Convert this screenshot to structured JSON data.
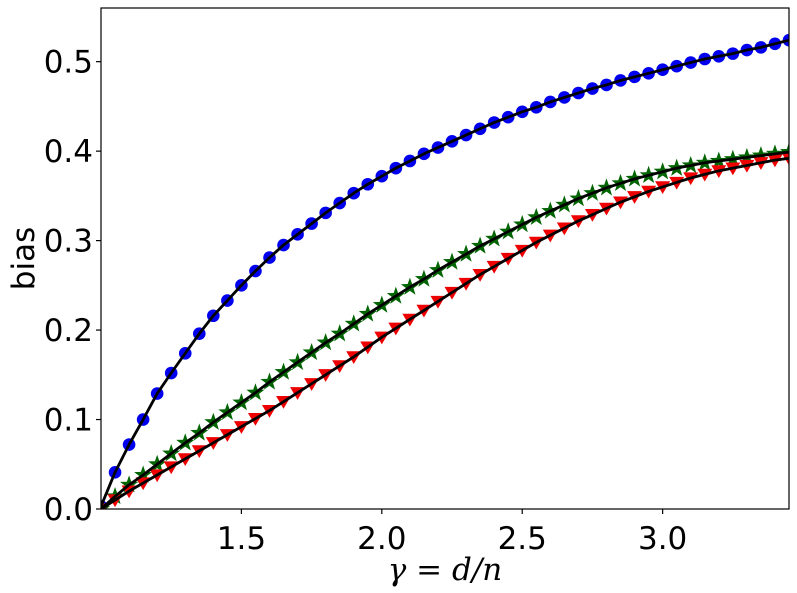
{
  "chart_data": {
    "type": "line",
    "title": "",
    "xlabel": "γ = d/n",
    "ylabel": "bias",
    "xlim": [
      1.0,
      3.45
    ],
    "ylim": [
      0.0,
      0.56
    ],
    "xticks": [
      1.5,
      2.0,
      2.5,
      3.0
    ],
    "xtick_labels": [
      "1.5",
      "2.0",
      "2.5",
      "3.0"
    ],
    "yticks": [
      0.0,
      0.1,
      0.2,
      0.3,
      0.4,
      0.5
    ],
    "ytick_labels": [
      "0.0",
      "0.1",
      "0.2",
      "0.3",
      "0.4",
      "0.5"
    ],
    "grid": false,
    "legend": "none",
    "curve_color": "#000000",
    "series": [
      {
        "marker": "circle",
        "color": "#0000ee",
        "x": [
          1.0,
          1.05,
          1.1,
          1.15,
          1.2,
          1.25,
          1.3,
          1.35,
          1.4,
          1.45,
          1.5,
          1.55,
          1.6,
          1.65,
          1.7,
          1.75,
          1.8,
          1.85,
          1.9,
          1.95,
          2.0,
          2.05,
          2.1,
          2.15,
          2.2,
          2.25,
          2.3,
          2.35,
          2.4,
          2.45,
          2.5,
          2.55,
          2.6,
          2.65,
          2.7,
          2.75,
          2.8,
          2.85,
          2.9,
          2.95,
          3.0,
          3.05,
          3.1,
          3.15,
          3.2,
          3.25,
          3.3,
          3.35,
          3.4,
          3.45
        ],
        "y": [
          0.003,
          0.041,
          0.072,
          0.1,
          0.129,
          0.152,
          0.174,
          0.196,
          0.216,
          0.233,
          0.25,
          0.266,
          0.281,
          0.295,
          0.307,
          0.319,
          0.331,
          0.342,
          0.353,
          0.363,
          0.372,
          0.381,
          0.389,
          0.397,
          0.404,
          0.411,
          0.418,
          0.425,
          0.432,
          0.438,
          0.444,
          0.449,
          0.455,
          0.46,
          0.465,
          0.47,
          0.474,
          0.479,
          0.483,
          0.487,
          0.491,
          0.495,
          0.499,
          0.503,
          0.506,
          0.509,
          0.513,
          0.516,
          0.52,
          0.524
        ]
      },
      {
        "marker": "star",
        "color": "#006400",
        "x": [
          1.0,
          1.05,
          1.1,
          1.15,
          1.2,
          1.25,
          1.3,
          1.35,
          1.4,
          1.45,
          1.5,
          1.55,
          1.6,
          1.65,
          1.7,
          1.75,
          1.8,
          1.85,
          1.9,
          1.95,
          2.0,
          2.05,
          2.1,
          2.15,
          2.2,
          2.25,
          2.3,
          2.35,
          2.4,
          2.45,
          2.5,
          2.55,
          2.6,
          2.65,
          2.7,
          2.75,
          2.8,
          2.85,
          2.9,
          2.95,
          3.0,
          3.05,
          3.1,
          3.15,
          3.2,
          3.25,
          3.3,
          3.35,
          3.4,
          3.45
        ],
        "y": [
          0.0,
          0.014,
          0.027,
          0.038,
          0.05,
          0.062,
          0.074,
          0.085,
          0.097,
          0.108,
          0.119,
          0.13,
          0.142,
          0.153,
          0.164,
          0.175,
          0.186,
          0.196,
          0.207,
          0.218,
          0.228,
          0.238,
          0.248,
          0.257,
          0.267,
          0.276,
          0.285,
          0.294,
          0.302,
          0.31,
          0.318,
          0.326,
          0.333,
          0.34,
          0.347,
          0.353,
          0.359,
          0.364,
          0.369,
          0.373,
          0.377,
          0.381,
          0.384,
          0.387,
          0.389,
          0.391,
          0.393,
          0.395,
          0.397,
          0.399
        ]
      },
      {
        "marker": "triangle-down",
        "color": "#ee0000",
        "x": [
          1.0,
          1.05,
          1.1,
          1.15,
          1.2,
          1.25,
          1.3,
          1.35,
          1.4,
          1.45,
          1.5,
          1.55,
          1.6,
          1.65,
          1.7,
          1.75,
          1.8,
          1.85,
          1.9,
          1.95,
          2.0,
          2.05,
          2.1,
          2.15,
          2.2,
          2.25,
          2.3,
          2.35,
          2.4,
          2.45,
          2.5,
          2.55,
          2.6,
          2.65,
          2.7,
          2.75,
          2.8,
          2.85,
          2.9,
          2.95,
          3.0,
          3.05,
          3.1,
          3.15,
          3.2,
          3.25,
          3.3,
          3.35,
          3.4,
          3.45
        ],
        "y": [
          0.0,
          0.01,
          0.02,
          0.029,
          0.038,
          0.047,
          0.056,
          0.065,
          0.074,
          0.083,
          0.092,
          0.101,
          0.11,
          0.12,
          0.13,
          0.14,
          0.15,
          0.16,
          0.17,
          0.181,
          0.192,
          0.202,
          0.212,
          0.222,
          0.232,
          0.242,
          0.252,
          0.262,
          0.271,
          0.28,
          0.289,
          0.298,
          0.306,
          0.314,
          0.322,
          0.329,
          0.336,
          0.343,
          0.349,
          0.355,
          0.36,
          0.365,
          0.37,
          0.374,
          0.378,
          0.381,
          0.384,
          0.387,
          0.39,
          0.392
        ]
      }
    ]
  }
}
